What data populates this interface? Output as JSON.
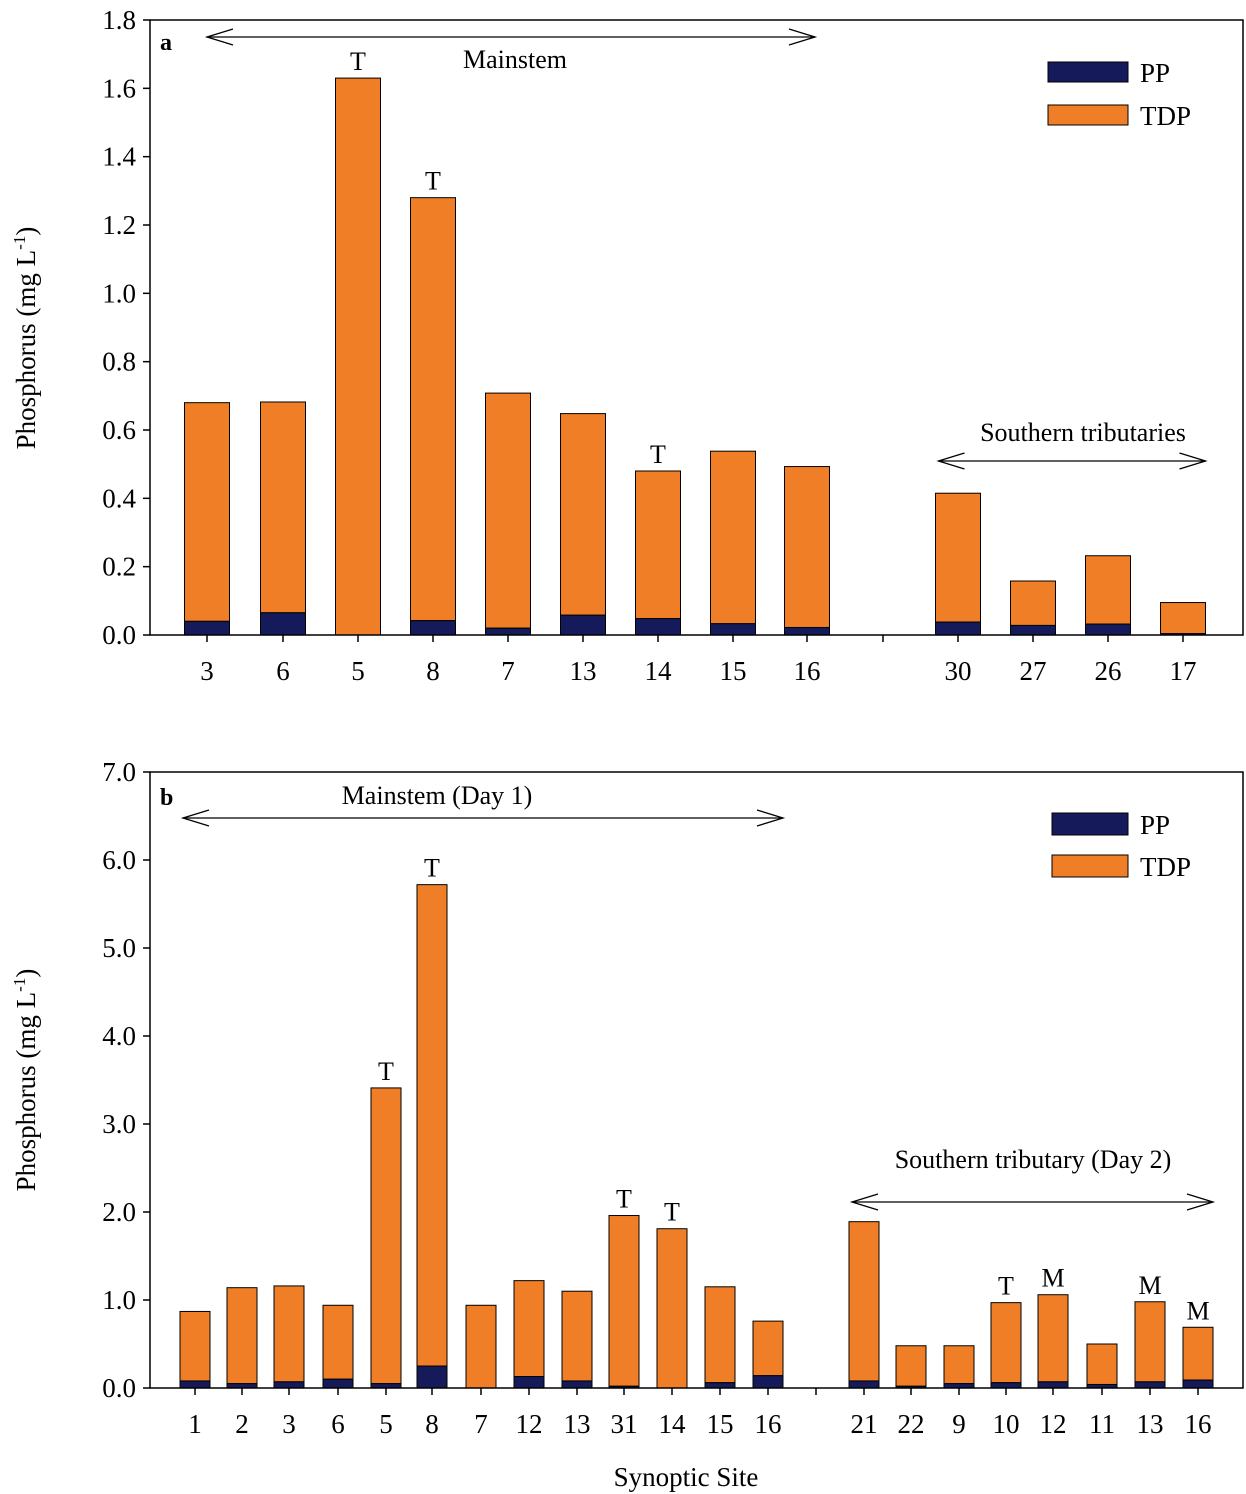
{
  "colors": {
    "pp": "#141a5a",
    "tdp": "#f07e26",
    "stroke": "#000000",
    "background": "#ffffff"
  },
  "chart_data": [
    {
      "type": "bar",
      "stacked": true,
      "panel_letter": "a",
      "ylabel": "Phosphorus (mg L",
      "ylabel_sup": "-1",
      "ylabel_close": ")",
      "ylim": [
        0,
        1.8
      ],
      "yticks": [
        "0.0",
        "0.2",
        "0.4",
        "0.6",
        "0.8",
        "1.0",
        "1.2",
        "1.4",
        "1.6",
        "1.8"
      ],
      "categories": [
        "3",
        "6",
        "5",
        "8",
        "7",
        "13",
        "14",
        "15",
        "16",
        "30",
        "27",
        "26",
        "17"
      ],
      "series": [
        {
          "name": "PP",
          "values": [
            0.04,
            0.065,
            0.0,
            0.042,
            0.02,
            0.058,
            0.048,
            0.033,
            0.022,
            0.038,
            0.028,
            0.032,
            0.004
          ]
        },
        {
          "name": "TDP",
          "values": [
            0.64,
            0.617,
            1.63,
            1.238,
            0.688,
            0.59,
            0.432,
            0.505,
            0.471,
            0.377,
            0.13,
            0.2,
            0.091
          ]
        }
      ],
      "bar_labels": [
        "",
        "",
        "T",
        "T",
        "",
        "",
        "T",
        "",
        "",
        "",
        "",
        "",
        ""
      ],
      "annotations": [
        {
          "text": "Mainstem",
          "from": 0,
          "to": 8
        },
        {
          "text": "Southern tributaries",
          "from": 9,
          "to": 12
        }
      ],
      "legend": {
        "position": "top-right",
        "entries": [
          "PP",
          "TDP"
        ]
      }
    },
    {
      "type": "bar",
      "stacked": true,
      "panel_letter": "b",
      "xlabel": "Synoptic Site",
      "ylabel": "Phosphorus (mg L",
      "ylabel_sup": "-1",
      "ylabel_close": ")",
      "ylim": [
        0,
        7.0
      ],
      "yticks": [
        "0.0",
        "1.0",
        "2.0",
        "3.0",
        "4.0",
        "5.0",
        "6.0",
        "7.0"
      ],
      "categories": [
        "1",
        "2",
        "3",
        "6",
        "5",
        "8",
        "7",
        "12",
        "13",
        "31",
        "14",
        "15",
        "16",
        "21",
        "22",
        "9",
        "10",
        "12",
        "11",
        "13",
        "16"
      ],
      "series": [
        {
          "name": "PP",
          "values": [
            0.08,
            0.05,
            0.07,
            0.1,
            0.05,
            0.25,
            0.0,
            0.13,
            0.08,
            0.02,
            0.0,
            0.06,
            0.14,
            0.08,
            0.02,
            0.05,
            0.06,
            0.07,
            0.04,
            0.07,
            0.09
          ]
        },
        {
          "name": "TDP",
          "values": [
            0.79,
            1.09,
            1.09,
            0.84,
            3.36,
            5.47,
            0.94,
            1.09,
            1.02,
            1.94,
            1.81,
            1.09,
            0.62,
            1.81,
            0.46,
            0.43,
            0.91,
            0.99,
            0.46,
            0.91,
            0.6
          ]
        }
      ],
      "bar_labels": [
        "",
        "",
        "",
        "",
        "T",
        "T",
        "",
        "",
        "",
        "T",
        "T",
        "",
        "",
        "",
        "",
        "",
        "T",
        "M",
        "",
        "M",
        "M"
      ],
      "annotations": [
        {
          "text": "Mainstem (Day 1)",
          "from": 0,
          "to": 12
        },
        {
          "text": "Southern tributary (Day 2)",
          "from": 13,
          "to": 20
        }
      ],
      "legend": {
        "position": "top-right",
        "entries": [
          "PP",
          "TDP"
        ]
      }
    }
  ]
}
